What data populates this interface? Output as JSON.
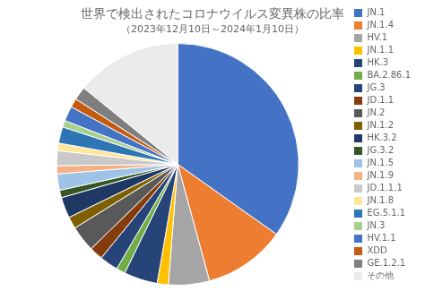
{
  "chart_data": {
    "type": "pie",
    "title": "世界で検出されたコロナウイルス変異株の比率",
    "subtitle": "（2023年12月10日～2024年1月10日）",
    "categories": [
      "JN.1",
      "JN.1.4",
      "HV.1",
      "JN.1.1",
      "HK.3",
      "BA.2.86.1",
      "JG.3",
      "JD.1.1",
      "JN.2",
      "JN.1.2",
      "HK.3.2",
      "JG.3.2",
      "JN.1.5",
      "JN.1.9",
      "JD.1.1.1",
      "JN.1.8",
      "EG.5.1.1",
      "JN.3",
      "HV.1.1",
      "XDD",
      "GE.1.2.1",
      "その他"
    ],
    "values": [
      35.0,
      11.0,
      5.5,
      1.5,
      4.5,
      1.2,
      2.5,
      1.8,
      3.5,
      1.6,
      2.8,
      1.0,
      2.2,
      1.1,
      2.0,
      1.0,
      2.2,
      0.9,
      2.0,
      1.2,
      1.8,
      14.2
    ],
    "colors": [
      "#4472C4",
      "#ED7D31",
      "#A5A5A5",
      "#FFC000",
      "#264478",
      "#70AD47",
      "#264478",
      "#843C0C",
      "#595959",
      "#7F6000",
      "#1F3864",
      "#375623",
      "#9DC3E6",
      "#F4B183",
      "#C9C9C9",
      "#FFE699",
      "#2E75B6",
      "#A9D18E",
      "#4472C4",
      "#C55A11",
      "#7F7F7F",
      "#EBEBEB"
    ],
    "legend": "right"
  }
}
